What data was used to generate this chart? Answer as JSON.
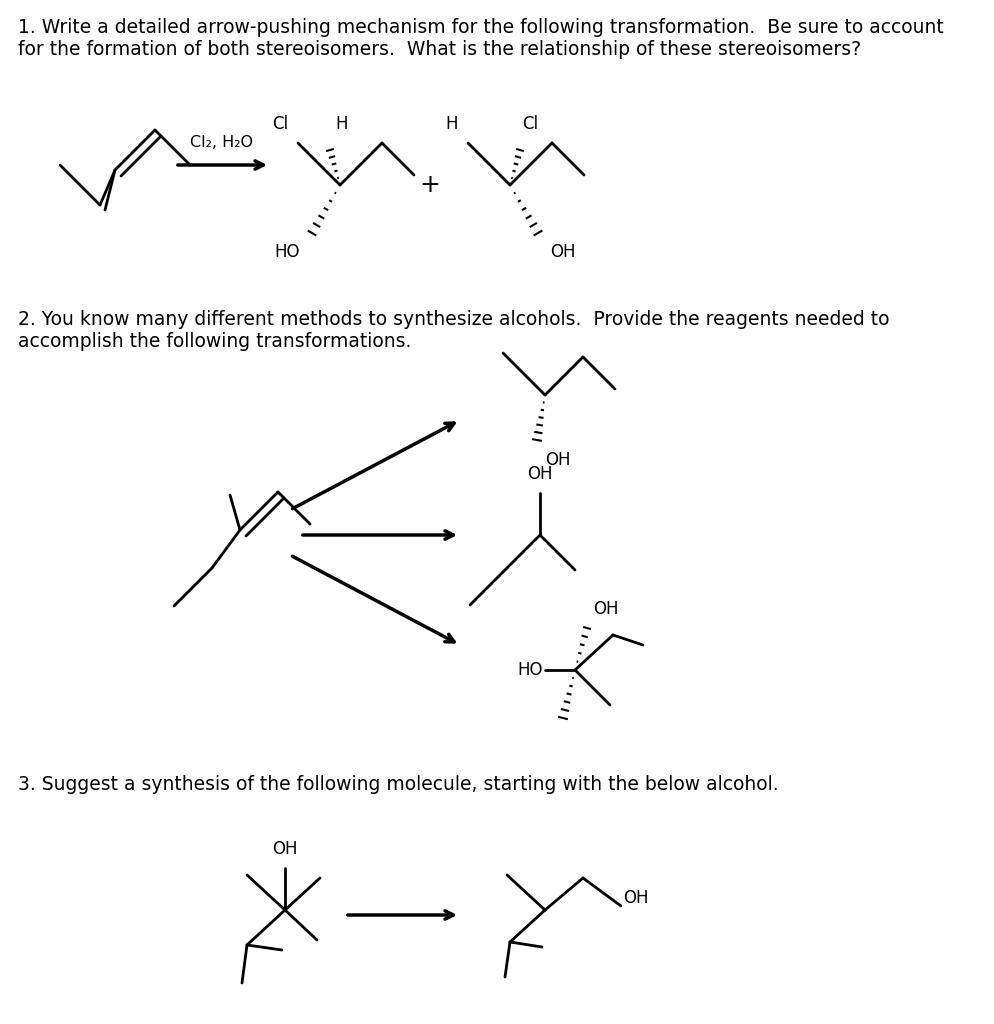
{
  "bg_color": "#ffffff",
  "text_color": "#000000",
  "q1_text": "1. Write a detailed arrow-pushing mechanism for the following transformation.  Be sure to account\nfor the formation of both stereoisomers.  What is the relationship of these stereoisomers?",
  "q2_text": "2. You know many different methods to synthesize alcohols.  Provide the reagents needed to\naccomplish the following transformations.",
  "q3_text": "3. Suggest a synthesis of the following molecule, starting with the below alcohol.",
  "reagent1": "Cl₂, H₂O",
  "font_size_text": 13.5,
  "font_size_label": 12,
  "font_size_plus": 16
}
